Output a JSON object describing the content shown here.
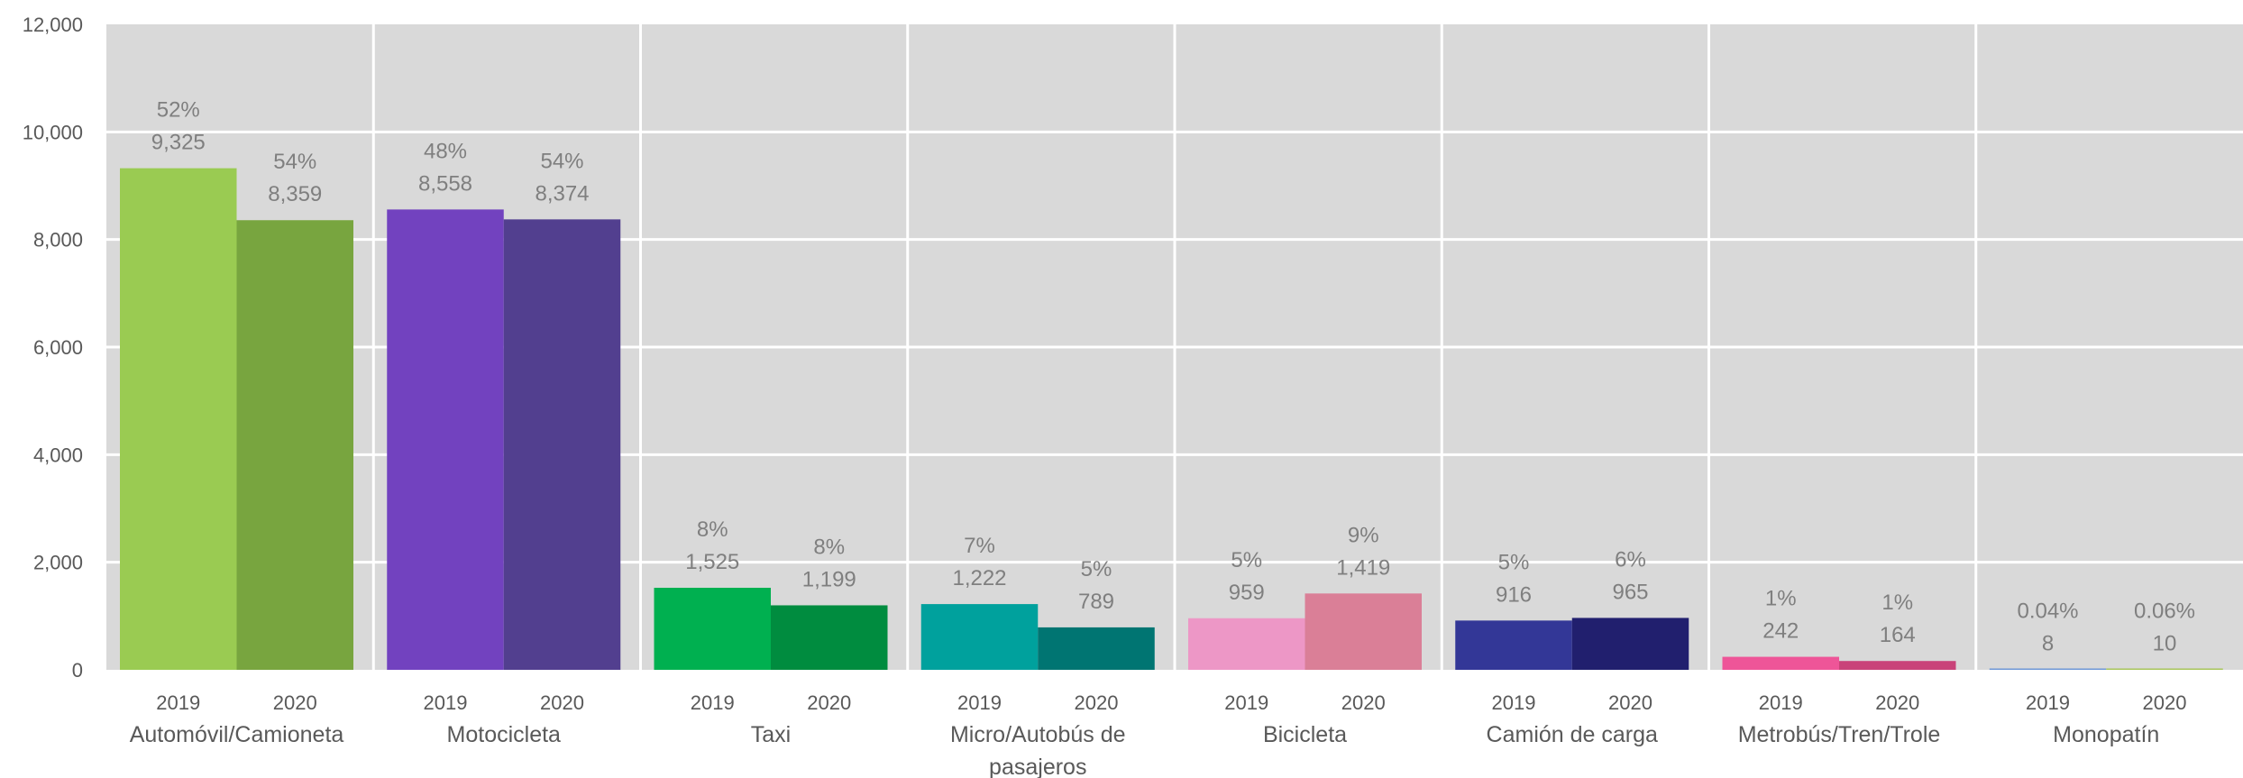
{
  "chart_data": {
    "type": "bar",
    "ylim": [
      0,
      12000
    ],
    "y_ticks": [
      "0",
      "2,000",
      "4,000",
      "6,000",
      "8,000",
      "10,000",
      "12,000"
    ],
    "grid": true,
    "legend": "none",
    "categories": [
      {
        "label": "Automóvil/Camioneta",
        "bars": [
          {
            "year": "2019",
            "value": 9325,
            "value_label": "9,325",
            "pct_label": "52%",
            "color": "#9ACB52"
          },
          {
            "year": "2020",
            "value": 8359,
            "value_label": "8,359",
            "pct_label": "54%",
            "color": "#78A53F"
          }
        ]
      },
      {
        "label": "Motocicleta",
        "bars": [
          {
            "year": "2019",
            "value": 8558,
            "value_label": "8,558",
            "pct_label": "48%",
            "color": "#7242BF"
          },
          {
            "year": "2020",
            "value": 8374,
            "value_label": "8,374",
            "pct_label": "54%",
            "color": "#523F8F"
          }
        ]
      },
      {
        "label": "Taxi",
        "bars": [
          {
            "year": "2019",
            "value": 1525,
            "value_label": "1,525",
            "pct_label": "8%",
            "color": "#00B050"
          },
          {
            "year": "2020",
            "value": 1199,
            "value_label": "1,199",
            "pct_label": "8%",
            "color": "#008C3F"
          }
        ]
      },
      {
        "label": "Micro/Autobús de pasajeros",
        "bars": [
          {
            "year": "2019",
            "value": 1222,
            "value_label": "1,222",
            "pct_label": "7%",
            "color": "#00A19D"
          },
          {
            "year": "2020",
            "value": 789,
            "value_label": "789",
            "pct_label": "5%",
            "color": "#007572"
          }
        ]
      },
      {
        "label": "Bicicleta",
        "bars": [
          {
            "year": "2019",
            "value": 959,
            "value_label": "959",
            "pct_label": "5%",
            "color": "#ED97C6"
          },
          {
            "year": "2020",
            "value": 1419,
            "value_label": "1,419",
            "pct_label": "9%",
            "color": "#DA7F97"
          }
        ]
      },
      {
        "label": "Camión de carga",
        "bars": [
          {
            "year": "2019",
            "value": 916,
            "value_label": "916",
            "pct_label": "5%",
            "color": "#333797"
          },
          {
            "year": "2020",
            "value": 965,
            "value_label": "965",
            "pct_label": "6%",
            "color": "#211F6E"
          }
        ]
      },
      {
        "label": "Metrobús/Tren/Trole",
        "bars": [
          {
            "year": "2019",
            "value": 242,
            "value_label": "242",
            "pct_label": "1%",
            "color": "#EE5598"
          },
          {
            "year": "2020",
            "value": 164,
            "value_label": "164",
            "pct_label": "1%",
            "color": "#C94379"
          }
        ]
      },
      {
        "label": "Monopatín",
        "bars": [
          {
            "year": "2019",
            "value": 8,
            "value_label": "8",
            "pct_label": "0.04%",
            "color": "#6E97D6"
          },
          {
            "year": "2020",
            "value": 10,
            "value_label": "10",
            "pct_label": "0.06%",
            "color": "#A8C55A"
          }
        ]
      }
    ]
  }
}
